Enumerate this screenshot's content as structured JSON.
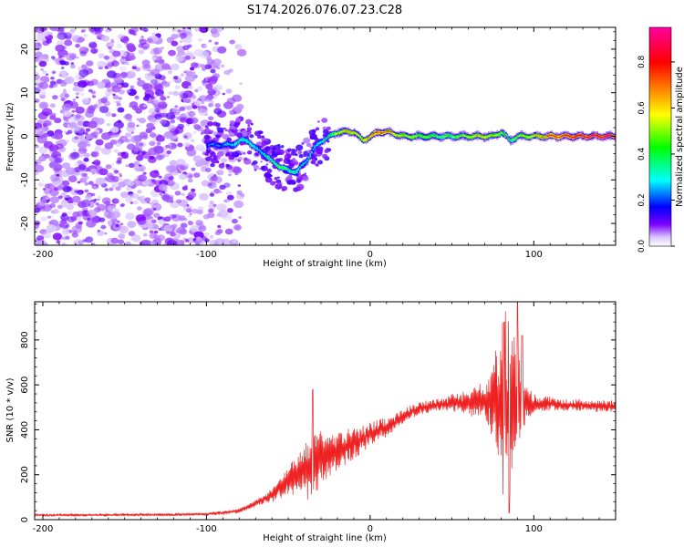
{
  "figure": {
    "title": "S174.2026.076.07.23.C28"
  },
  "chart_data": [
    {
      "type": "heatmap",
      "title": "S174.2026.076.07.23.C28",
      "xlabel": "Height of straight line (km)",
      "ylabel": "Frequency (Hz)",
      "xlim": [
        -205,
        150
      ],
      "ylim": [
        -25,
        25
      ],
      "x_ticks": [
        -200,
        -100,
        0,
        100
      ],
      "y_ticks": [
        -20,
        -10,
        0,
        10,
        20
      ],
      "colorbar": {
        "label": "Normalized spectral amplitude",
        "range": [
          0,
          0.95
        ],
        "ticks": [
          "0.0",
          "0.2",
          "0.4",
          "0.6",
          "0.8"
        ],
        "colors": [
          "#ffffff",
          "#7700ff",
          "#0000ff",
          "#00ffff",
          "#00ff00",
          "#ffff00",
          "#ff7f00",
          "#ff0000",
          "#ff00aa"
        ]
      },
      "noise_region_x": [
        -205,
        -78
      ],
      "ridge": {
        "x": [
          -100,
          -90,
          -85,
          -80,
          -75,
          -70,
          -65,
          -60,
          -55,
          -50,
          -45,
          -40,
          -35,
          -30,
          -25,
          -20,
          -15,
          -10,
          -5,
          0,
          5,
          10,
          20,
          30,
          40,
          50,
          60,
          70,
          75,
          80,
          85,
          90,
          100,
          110,
          120,
          130,
          140,
          150
        ],
        "freq": [
          -2,
          -2,
          -2,
          -1,
          -1,
          -3,
          -4,
          -6,
          -7,
          -8,
          -8,
          -6,
          -3,
          -1,
          0,
          1,
          1,
          1,
          -1,
          0,
          1,
          1,
          0,
          0,
          0,
          0,
          0,
          0,
          0,
          1,
          -1,
          0,
          0,
          0,
          0,
          0,
          0,
          0
        ],
        "amplitude": [
          0.2,
          0.25,
          0.3,
          0.35,
          0.35,
          0.3,
          0.35,
          0.4,
          0.45,
          0.4,
          0.35,
          0.3,
          0.3,
          0.35,
          0.4,
          0.55,
          0.65,
          0.6,
          0.6,
          0.7,
          0.75,
          0.7,
          0.55,
          0.5,
          0.45,
          0.45,
          0.55,
          0.6,
          0.55,
          0.45,
          0.4,
          0.5,
          0.6,
          0.75,
          0.8,
          0.85,
          0.9,
          0.9
        ]
      }
    },
    {
      "type": "line",
      "xlabel": "Height of straight line (km)",
      "ylabel": "SNR (10 * v/v)",
      "xlim": [
        -205,
        150
      ],
      "ylim": [
        0,
        970
      ],
      "x_ticks": [
        -200,
        -100,
        0,
        100
      ],
      "y_ticks": [
        0,
        200,
        400,
        600,
        800
      ],
      "color": "#ee2222",
      "series": [
        {
          "name": "SNR",
          "x": [
            -205,
            -180,
            -150,
            -120,
            -100,
            -90,
            -80,
            -75,
            -70,
            -65,
            -60,
            -55,
            -50,
            -45,
            -40,
            -35,
            -30,
            -25,
            -20,
            -15,
            -10,
            -5,
            0,
            5,
            10,
            15,
            20,
            25,
            30,
            35,
            40,
            45,
            50,
            55,
            60,
            65,
            70,
            75,
            80,
            85,
            90,
            95,
            100,
            110,
            120,
            130,
            140,
            150
          ],
          "mean": [
            20,
            20,
            22,
            22,
            25,
            30,
            40,
            55,
            70,
            90,
            110,
            140,
            170,
            200,
            220,
            240,
            270,
            290,
            300,
            320,
            340,
            360,
            380,
            400,
            410,
            430,
            460,
            480,
            495,
            505,
            510,
            515,
            515,
            520,
            525,
            525,
            525,
            520,
            520,
            520,
            520,
            520,
            515,
            515,
            510,
            510,
            505,
            505
          ],
          "spread": [
            6,
            6,
            6,
            6,
            7,
            8,
            10,
            12,
            16,
            20,
            30,
            45,
            60,
            75,
            110,
            160,
            120,
            90,
            80,
            80,
            70,
            60,
            50,
            45,
            40,
            35,
            30,
            30,
            30,
            30,
            30,
            30,
            40,
            45,
            55,
            70,
            90,
            160,
            350,
            450,
            300,
            80,
            40,
            30,
            25,
            25,
            25,
            25
          ],
          "peak_max": 960,
          "peak_max_at": 90,
          "notable_min": 30,
          "notable_min_at": 85
        }
      ]
    }
  ]
}
